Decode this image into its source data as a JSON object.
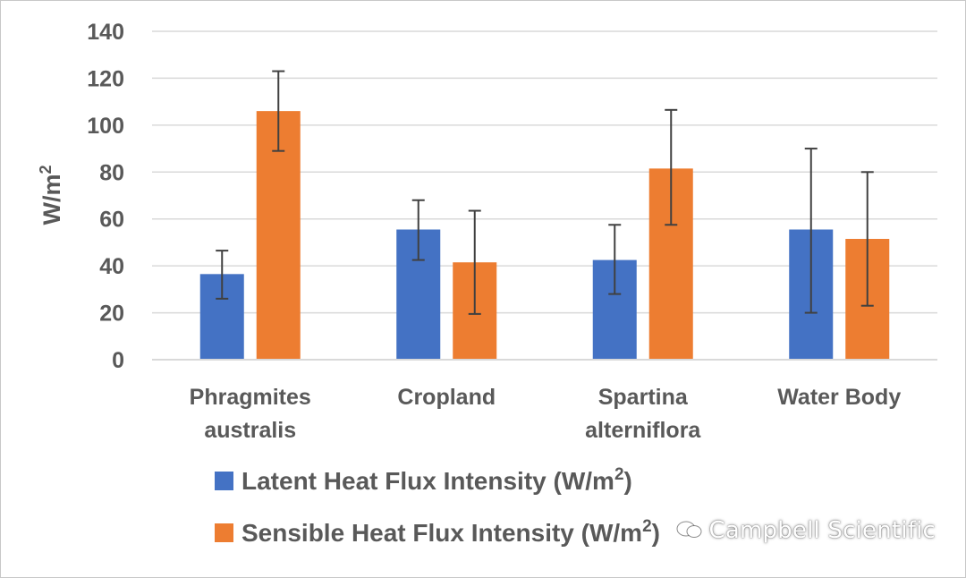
{
  "chart_data": {
    "type": "bar",
    "title": "",
    "xlabel": "",
    "ylabel": "W/m",
    "ylabel_superscript": "2",
    "ylim": [
      0,
      140
    ],
    "yticks": [
      0,
      20,
      40,
      60,
      80,
      100,
      120,
      140
    ],
    "grid": true,
    "categories": [
      [
        "Phragmites",
        "australis"
      ],
      [
        "Cropland"
      ],
      [
        "Spartina",
        "alterniflora"
      ],
      [
        "Water Body"
      ]
    ],
    "series": [
      {
        "name": "Latent Heat Flux Intensity (W/m",
        "name_superscript": "2",
        "name_suffix": ")",
        "color": "#4472C4",
        "values": [
          36.5,
          55.5,
          42.5,
          55.5
        ],
        "error_low": [
          26,
          42.5,
          28,
          20
        ],
        "error_high": [
          46.5,
          68,
          57.5,
          90
        ]
      },
      {
        "name": "Sensible Heat Flux Intensity (W/m",
        "name_superscript": "2",
        "name_suffix": ")",
        "color": "#ED7D31",
        "values": [
          106,
          41.5,
          81.5,
          51.5
        ],
        "error_low": [
          89,
          19.5,
          57.5,
          23
        ],
        "error_high": [
          123,
          63.5,
          106.5,
          80
        ]
      }
    ],
    "legend_position": "bottom-left"
  },
  "watermark": {
    "text": "Campbell Scientific"
  }
}
